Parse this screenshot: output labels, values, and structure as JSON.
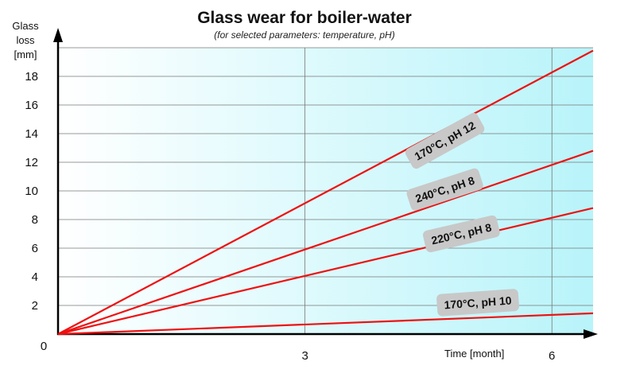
{
  "chart_data": {
    "type": "line",
    "title": "Glass wear for boiler-water",
    "subtitle": "(for selected parameters: temperature, pH)",
    "ylabel": [
      "Glass",
      "loss",
      "[mm]"
    ],
    "xlabel": "Time [month]",
    "xlim": [
      0,
      6.5
    ],
    "ylim": [
      0,
      20
    ],
    "x_ticks": [
      3,
      6
    ],
    "y_ticks": [
      2,
      4,
      6,
      8,
      10,
      12,
      14,
      16,
      18
    ],
    "origin_label": "0",
    "grid": true,
    "series": [
      {
        "name": "170°C, pH 12",
        "x": [
          0,
          6.5
        ],
        "y": [
          0,
          19.8
        ],
        "label_at": {
          "x": 4.7,
          "y": 13.5,
          "angle": -29
        }
      },
      {
        "name": "240°C, pH 8",
        "x": [
          0,
          6.5
        ],
        "y": [
          0,
          12.8
        ],
        "label_at": {
          "x": 4.7,
          "y": 10.1,
          "angle": -18
        }
      },
      {
        "name": "220°C, pH 8",
        "x": [
          0,
          6.5
        ],
        "y": [
          0,
          8.8
        ],
        "label_at": {
          "x": 4.9,
          "y": 7.0,
          "angle": -13
        }
      },
      {
        "name": "170°C, pH 10",
        "x": [
          0,
          6.5
        ],
        "y": [
          0,
          1.45
        ],
        "label_at": {
          "x": 5.1,
          "y": 2.2,
          "angle": -4
        }
      }
    ]
  },
  "colors": {
    "line": "#ee1111",
    "plot_bg_left": "#ffffff",
    "plot_bg_right": "#b8f4fa",
    "grid": "#777777",
    "label_box": "#c8c8c8"
  }
}
